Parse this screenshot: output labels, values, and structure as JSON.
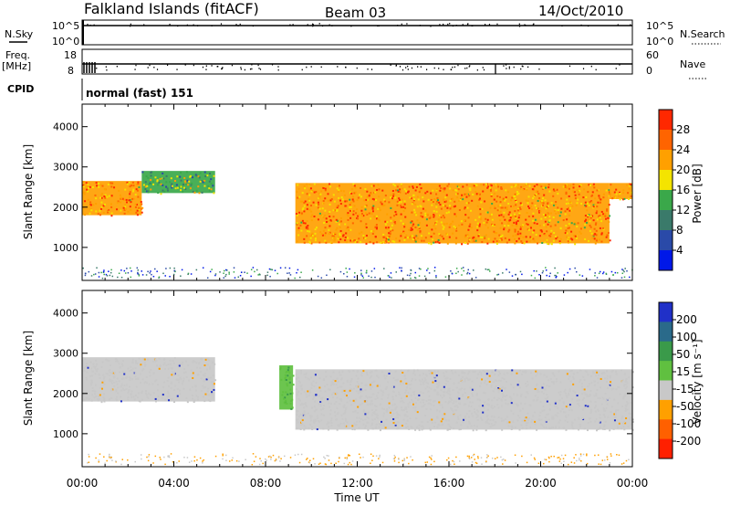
{
  "header": {
    "title": "Falkland Islands (fitACF)",
    "beam": "Beam 03",
    "date": "14/Oct/2010"
  },
  "top_panels": {
    "nsky_label": "N.Sky",
    "nsky_ticks": [
      "10^5",
      "10^0"
    ],
    "nsearch_label": "N.Search",
    "nsearch_ticks": [
      "10^5",
      "10^0"
    ],
    "freq_label": "Freq.",
    "freq_unit": "[MHz]",
    "freq_ticks": [
      "18",
      "8"
    ],
    "nave_label": "Nave",
    "nave_ticks": [
      "60",
      "0"
    ],
    "cpid_label": "CPID",
    "cpid_text": "normal (fast) 151"
  },
  "chart_data": [
    {
      "type": "heatmap",
      "panel": "power",
      "title": "",
      "xlabel": "",
      "ylabel": "Slant Range [km]",
      "xlim": [
        0,
        24
      ],
      "ylim": [
        180,
        4560
      ],
      "y_ticks": [
        1000,
        2000,
        3000,
        4000
      ],
      "colorbar": {
        "label": "Power [dB]",
        "ticks": [
          4,
          8,
          12,
          16,
          20,
          24,
          28
        ],
        "range": [
          0,
          32
        ],
        "colors": [
          "#0018e8",
          "#2a4aa8",
          "#3a7a6a",
          "#3aa84a",
          "#f4e400",
          "#ffa000",
          "#ff6400",
          "#ff2800"
        ]
      },
      "echo_regions": [
        {
          "t_start": 0.0,
          "t_end": 2.6,
          "range_low": 1800,
          "range_high": 2650,
          "peak_power_db": 28
        },
        {
          "t_start": 2.6,
          "t_end": 5.8,
          "range_low": 2350,
          "range_high": 2900,
          "peak_power_db": 12
        },
        {
          "t_start": 9.3,
          "t_end": 23.0,
          "range_low": 1100,
          "range_high": 2600,
          "peak_power_db": 28
        },
        {
          "t_start": 23.0,
          "t_end": 24.0,
          "range_low": 2200,
          "range_high": 2600,
          "peak_power_db": 24
        }
      ]
    },
    {
      "type": "heatmap",
      "panel": "velocity",
      "title": "",
      "xlabel": "Time UT",
      "ylabel": "Slant Range [km]",
      "xlim": [
        0,
        24
      ],
      "ylim": [
        180,
        4560
      ],
      "x_ticks": [
        "00:00",
        "04:00",
        "08:00",
        "12:00",
        "16:00",
        "20:00",
        "00:00"
      ],
      "y_ticks": [
        1000,
        2000,
        3000,
        4000
      ],
      "colorbar": {
        "label": "Velocity [m s⁻¹]",
        "ticks": [
          200,
          100,
          50,
          15,
          -15,
          -50,
          -100,
          -200
        ],
        "colors": [
          "#2030c8",
          "#2a6a8a",
          "#3a9a4a",
          "#60c040",
          "#c8c8c8",
          "#ffa000",
          "#ff6000",
          "#ff2000"
        ]
      },
      "echo_regions": [
        {
          "t_start": 0.0,
          "t_end": 5.8,
          "range_low": 1800,
          "range_high": 2900,
          "velocity_ms": 0
        },
        {
          "t_start": 8.6,
          "t_end": 9.2,
          "range_low": 1600,
          "range_high": 2700,
          "velocity_ms": 30
        },
        {
          "t_start": 9.3,
          "t_end": 24.0,
          "range_low": 1100,
          "range_high": 2600,
          "velocity_ms": 0
        }
      ]
    }
  ]
}
